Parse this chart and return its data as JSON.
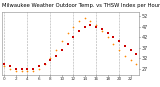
{
  "title": "Milwaukee Weather Outdoor Temp. vs THSW Index per Hour (24 Hours)",
  "bg_color": "#ffffff",
  "grid_color": "#aaaaaa",
  "hours": [
    0,
    1,
    2,
    3,
    4,
    5,
    6,
    7,
    8,
    9,
    10,
    11,
    12,
    13,
    14,
    15,
    16,
    17,
    18,
    19,
    20,
    21,
    22,
    23
  ],
  "temp_F": [
    29,
    28,
    27,
    27,
    27,
    27,
    28,
    29,
    31,
    33,
    36,
    39,
    42,
    45,
    47,
    48,
    47,
    46,
    44,
    42,
    40,
    38,
    36,
    34
  ],
  "thsw": [
    28,
    27,
    26,
    26,
    26,
    26,
    27,
    29,
    32,
    36,
    40,
    44,
    47,
    50,
    51,
    50,
    48,
    45,
    42,
    39,
    36,
    33,
    31,
    29
  ],
  "temp_color": "#cc0000",
  "thsw_color": "#ff8800",
  "marker_size": 1.5,
  "ylim_min": 24,
  "ylim_max": 54,
  "yticks": [
    27,
    32,
    37,
    42,
    47,
    52
  ],
  "ylabel_fontsize": 3.5,
  "xlabel_fontsize": 3.0,
  "title_fontsize": 3.8,
  "vgrid_positions": [
    0,
    4,
    8,
    12,
    16,
    20
  ],
  "xtick_every": 2
}
